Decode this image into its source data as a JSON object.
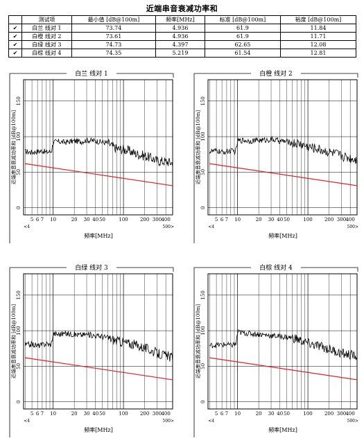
{
  "page_title": "近端串音衰减功率和",
  "table": {
    "headers": [
      "测试项",
      "最小值 [dB@100m]",
      "频率[MHz]",
      "标准 [dB@100m]",
      "裕度 [dB@100m]"
    ],
    "rows": [
      {
        "check": "✔",
        "name": "白兰 线对 1",
        "min": "73.74",
        "freq": "4.936",
        "std": "61.9",
        "margin": "11.84"
      },
      {
        "check": "✔",
        "name": "白橙 线对 2",
        "min": "73.61",
        "freq": "4.936",
        "std": "61.9",
        "margin": "11.71"
      },
      {
        "check": "✔",
        "name": "白绿 线对 3",
        "min": "74.73",
        "freq": "4.397",
        "std": "62.65",
        "margin": "12.08"
      },
      {
        "check": "✔",
        "name": "白棕 线对 4",
        "min": "74.35",
        "freq": "5.219",
        "std": "61.54",
        "margin": "12.81"
      }
    ]
  },
  "colors": {
    "limit_line": "#e02020",
    "trace": "#000000",
    "grid": "#000000"
  },
  "chart_data": [
    {
      "type": "line",
      "title": "白兰 线对 1",
      "xlabel": "频率[MHz]",
      "ylabel": "近端串音衰减功率和 [dB@100m]",
      "x_scale": "log",
      "xlim": [
        3.8,
        500
      ],
      "ylim": [
        -10,
        180
      ],
      "x_ticks": [
        "5",
        "6",
        "7",
        "10",
        "20",
        "30",
        "40",
        "50",
        "100",
        "200",
        "300",
        "400"
      ],
      "x_extra_ticks": [
        "<4",
        "500>"
      ],
      "y_ticks": [
        "0",
        "50",
        "100",
        "150"
      ],
      "series": [
        {
          "role": "limit",
          "x": [
            4,
            500
          ],
          "y": [
            62,
            31
          ]
        },
        {
          "role": "measured",
          "x": [
            4,
            5,
            6,
            7,
            8,
            9,
            9.5,
            10,
            12,
            15,
            20,
            25,
            30,
            40,
            50,
            60,
            70,
            80,
            100,
            120,
            150,
            200,
            250,
            300,
            400,
            500
          ],
          "y": [
            79,
            78,
            79,
            80,
            78,
            79,
            80,
            92,
            93,
            92,
            94,
            93,
            95,
            94,
            92,
            91,
            86,
            83,
            82,
            80,
            76,
            73,
            70,
            66,
            65,
            63
          ]
        }
      ]
    },
    {
      "type": "line",
      "title": "白橙 线对 2",
      "xlabel": "频率[MHz]",
      "ylabel": "近端串音衰减功率和 [dB@100m]",
      "x_scale": "log",
      "xlim": [
        3.8,
        500
      ],
      "ylim": [
        -10,
        180
      ],
      "x_ticks": [
        "5",
        "6",
        "7",
        "10",
        "20",
        "30",
        "40",
        "50",
        "100",
        "200",
        "300",
        "400"
      ],
      "x_extra_ticks": [
        "<4",
        "500>"
      ],
      "y_ticks": [
        "0",
        "50",
        "100",
        "150"
      ],
      "series": [
        {
          "role": "limit",
          "x": [
            4,
            500
          ],
          "y": [
            62,
            31
          ]
        },
        {
          "role": "measured",
          "x": [
            4,
            5,
            6,
            7,
            8,
            9,
            9.5,
            10,
            12,
            15,
            20,
            25,
            30,
            40,
            50,
            60,
            70,
            80,
            100,
            120,
            150,
            200,
            250,
            300,
            400,
            500
          ],
          "y": [
            79,
            80,
            78,
            79,
            80,
            79,
            80,
            94,
            95,
            94,
            95,
            95,
            96,
            94,
            93,
            91,
            90,
            89,
            86,
            84,
            82,
            78,
            76,
            73,
            70,
            68
          ]
        }
      ]
    },
    {
      "type": "line",
      "title": "白绿 线对 3",
      "xlabel": "频率[MHz]",
      "ylabel": "近端串音衰减功率和 [dB@100m]",
      "x_scale": "log",
      "xlim": [
        3.8,
        500
      ],
      "ylim": [
        -10,
        180
      ],
      "x_ticks": [
        "5",
        "6",
        "7",
        "10",
        "20",
        "30",
        "40",
        "50",
        "100",
        "200",
        "300",
        "400"
      ],
      "x_extra_ticks": [
        "<4",
        "500>"
      ],
      "y_ticks": [
        "0",
        "50",
        "100",
        "150"
      ],
      "series": [
        {
          "role": "limit",
          "x": [
            4,
            500
          ],
          "y": [
            62,
            31
          ]
        },
        {
          "role": "measured",
          "x": [
            4,
            5,
            6,
            7,
            8,
            9,
            9.5,
            10,
            12,
            15,
            20,
            25,
            30,
            40,
            50,
            60,
            70,
            80,
            100,
            120,
            150,
            200,
            250,
            300,
            400,
            500
          ],
          "y": [
            80,
            81,
            79,
            80,
            82,
            80,
            82,
            96,
            95,
            96,
            95,
            94,
            95,
            93,
            92,
            90,
            88,
            86,
            84,
            82,
            80,
            76,
            72,
            68,
            65,
            62
          ]
        }
      ]
    },
    {
      "type": "line",
      "title": "白棕 线对 4",
      "xlabel": "频率[MHz]",
      "ylabel": "近端串音衰减功率和 [dB@100m]",
      "x_scale": "log",
      "xlim": [
        3.8,
        500
      ],
      "ylim": [
        -10,
        180
      ],
      "x_ticks": [
        "5",
        "6",
        "7",
        "10",
        "20",
        "30",
        "40",
        "50",
        "100",
        "200",
        "300",
        "400"
      ],
      "x_extra_ticks": [
        "<4",
        "500>"
      ],
      "y_ticks": [
        "0",
        "50",
        "100",
        "150"
      ],
      "series": [
        {
          "role": "limit",
          "x": [
            4,
            500
          ],
          "y": [
            62,
            31
          ]
        },
        {
          "role": "measured",
          "x": [
            4,
            5,
            6,
            7,
            8,
            9,
            9.5,
            10,
            12,
            15,
            20,
            25,
            30,
            40,
            50,
            60,
            70,
            80,
            100,
            120,
            150,
            200,
            250,
            300,
            400,
            500
          ],
          "y": [
            79,
            80,
            80,
            81,
            79,
            81,
            80,
            98,
            97,
            96,
            95,
            94,
            93,
            92,
            91,
            90,
            88,
            86,
            82,
            80,
            78,
            74,
            71,
            68,
            66,
            64
          ]
        }
      ]
    }
  ]
}
